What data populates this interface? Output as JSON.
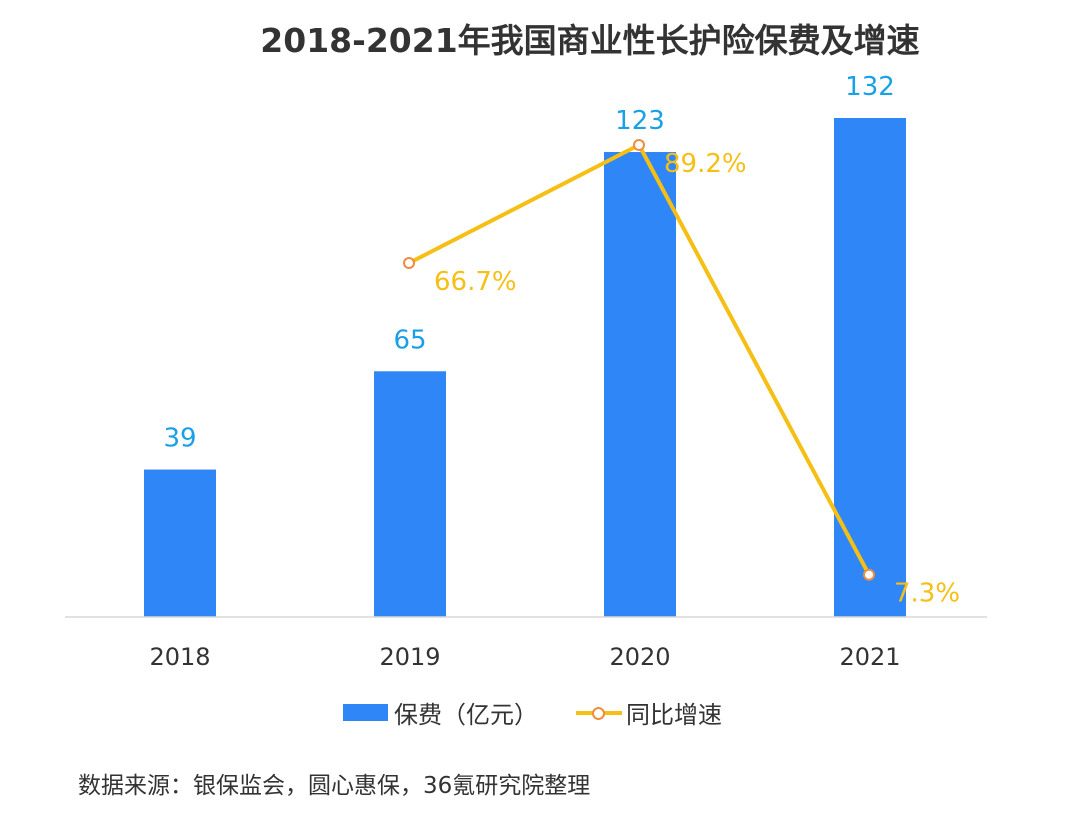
{
  "title": "2018-2021年我国商业性长护险保费及增速",
  "source": "数据来源：银保监会，圆心惠保，36氪研究院整理",
  "colors": {
    "bar": "#2f86f6",
    "bar_label": "#1aa0e6",
    "line": "#f6bf16",
    "line_label": "#f6bf16",
    "marker_edge": "#f08c3c",
    "axis": "#d9d9d9",
    "tick_label": "#333333"
  },
  "chart_data": {
    "type": "bar",
    "title": "2018-2021年我国商业性长护险保费及增速",
    "categories": [
      "2018",
      "2019",
      "2020",
      "2021"
    ],
    "series": [
      {
        "name": "保费（亿元）",
        "type": "bar",
        "values": [
          39,
          65,
          123,
          132
        ],
        "labels": [
          "39",
          "65",
          "123",
          "132"
        ]
      },
      {
        "name": "同比增速",
        "type": "line",
        "values": [
          null,
          66.7,
          89.2,
          7.3
        ],
        "labels": [
          "",
          "66.7%",
          "89.2%",
          "7.3%"
        ]
      }
    ],
    "xlabel": "",
    "ylabel": "",
    "grid": false,
    "legend": "bottom"
  }
}
